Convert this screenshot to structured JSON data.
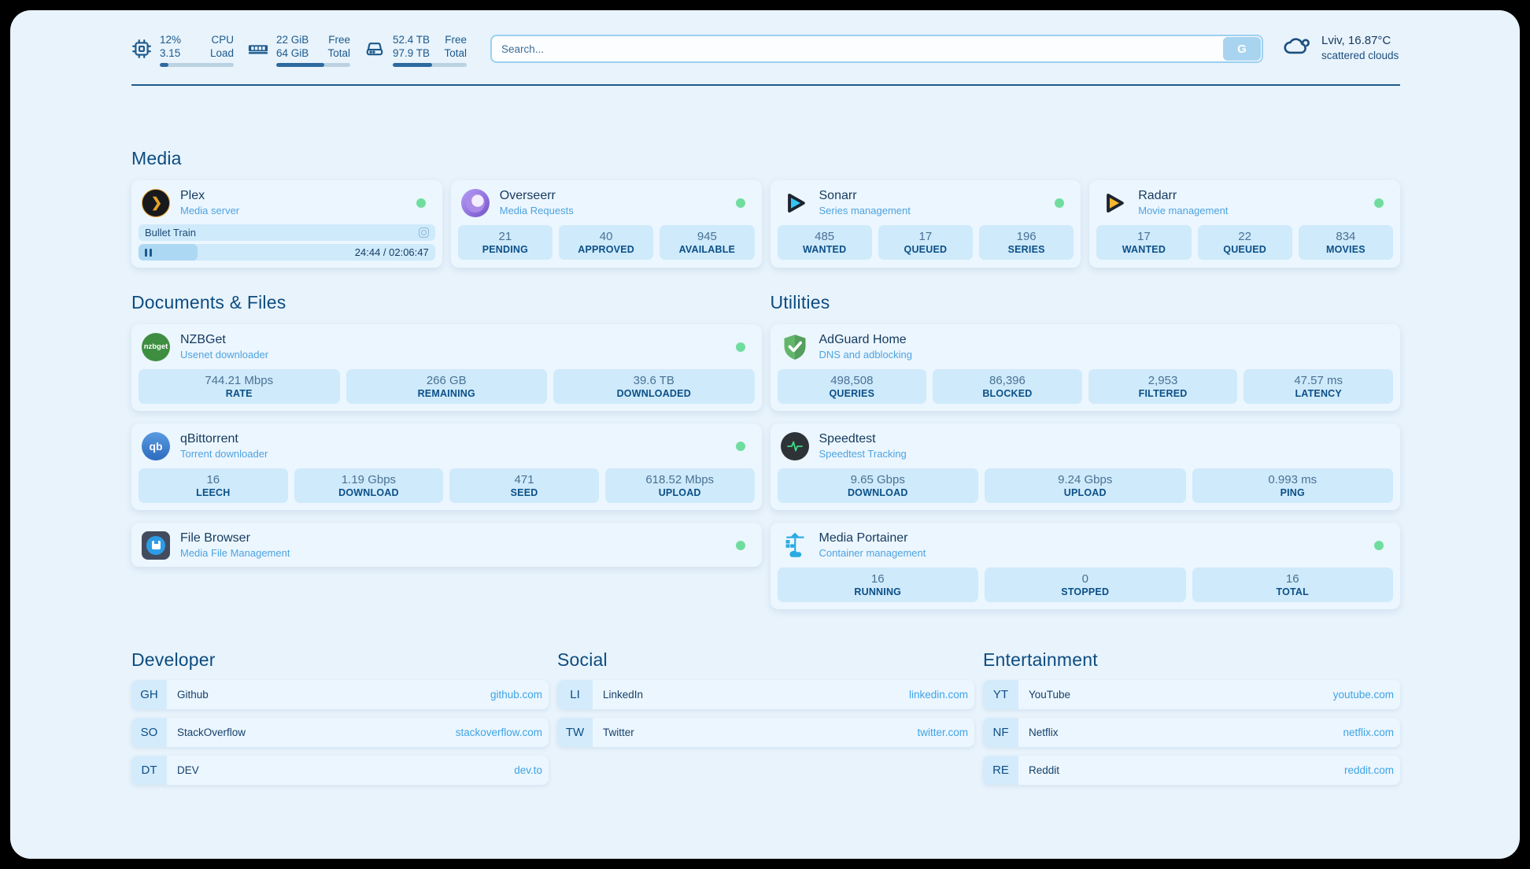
{
  "colors": {
    "panel_bg": "#e8f3fc",
    "accent_dark": "#0d4c80",
    "text_navy": "#153a5f",
    "subtitle_blue": "#4da3e0",
    "stat_box_bg": "#cfeafb",
    "status_online": "#70dd9f",
    "link_url_blue": "#3ea3e5",
    "progress_fill": "#2c6a9e"
  },
  "header": {
    "metrics": [
      {
        "icon": "cpu-icon",
        "values": [
          "12%",
          "3.15"
        ],
        "labels": [
          "CPU",
          "Load"
        ],
        "percent": 12
      },
      {
        "icon": "ram-icon",
        "values": [
          "22 GiB",
          "64 GiB"
        ],
        "labels": [
          "Free",
          "Total"
        ],
        "percent": 65
      },
      {
        "icon": "disk-icon",
        "values": [
          "52.4 TB",
          "97.9 TB"
        ],
        "labels": [
          "Free",
          "Total"
        ],
        "percent": 53
      }
    ],
    "search": {
      "placeholder": "Search...",
      "button_label": "G"
    },
    "weather": {
      "location": "Lviv, 16.87°C",
      "condition": "scattered clouds"
    }
  },
  "sections": {
    "media": "Media",
    "documents": "Documents & Files",
    "utilities": "Utilities",
    "developer": "Developer",
    "social": "Social",
    "entertainment": "Entertainment"
  },
  "apps": {
    "plex": {
      "name": "Plex",
      "desc": "Media server",
      "now_playing": "Bullet Train",
      "time": "24:44 / 02:06:47"
    },
    "overseerr": {
      "name": "Overseerr",
      "desc": "Media Requests",
      "stats": [
        {
          "value": "21",
          "label": "PENDING"
        },
        {
          "value": "40",
          "label": "APPROVED"
        },
        {
          "value": "945",
          "label": "AVAILABLE"
        }
      ]
    },
    "sonarr": {
      "name": "Sonarr",
      "desc": "Series management",
      "stats": [
        {
          "value": "485",
          "label": "WANTED"
        },
        {
          "value": "17",
          "label": "QUEUED"
        },
        {
          "value": "196",
          "label": "SERIES"
        }
      ]
    },
    "radarr": {
      "name": "Radarr",
      "desc": "Movie management",
      "stats": [
        {
          "value": "17",
          "label": "WANTED"
        },
        {
          "value": "22",
          "label": "QUEUED"
        },
        {
          "value": "834",
          "label": "MOVIES"
        }
      ]
    },
    "nzbget": {
      "name": "NZBGet",
      "desc": "Usenet downloader",
      "icon_label": "nzbget",
      "stats": [
        {
          "value": "744.21 Mbps",
          "label": "RATE"
        },
        {
          "value": "266 GB",
          "label": "REMAINING"
        },
        {
          "value": "39.6 TB",
          "label": "DOWNLOADED"
        }
      ]
    },
    "qbittorrent": {
      "name": "qBittorrent",
      "desc": "Torrent downloader",
      "icon_label": "qb",
      "stats": [
        {
          "value": "16",
          "label": "LEECH"
        },
        {
          "value": "1.19 Gbps",
          "label": "DOWNLOAD"
        },
        {
          "value": "471",
          "label": "SEED"
        },
        {
          "value": "618.52 Mbps",
          "label": "UPLOAD"
        }
      ]
    },
    "filebrowser": {
      "name": "File Browser",
      "desc": "Media File Management"
    },
    "adguard": {
      "name": "AdGuard Home",
      "desc": "DNS and adblocking",
      "stats": [
        {
          "value": "498,508",
          "label": "QUERIES"
        },
        {
          "value": "86,396",
          "label": "BLOCKED"
        },
        {
          "value": "2,953",
          "label": "FILTERED"
        },
        {
          "value": "47.57 ms",
          "label": "LATENCY"
        }
      ]
    },
    "speedtest": {
      "name": "Speedtest",
      "desc": "Speedtest Tracking",
      "stats": [
        {
          "value": "9.65 Gbps",
          "label": "DOWNLOAD"
        },
        {
          "value": "9.24 Gbps",
          "label": "UPLOAD"
        },
        {
          "value": "0.993 ms",
          "label": "PING"
        }
      ]
    },
    "portainer": {
      "name": "Media Portainer",
      "desc": "Container management",
      "stats": [
        {
          "value": "16",
          "label": "RUNNING"
        },
        {
          "value": "0",
          "label": "STOPPED"
        },
        {
          "value": "16",
          "label": "TOTAL"
        }
      ]
    }
  },
  "links": {
    "developer": [
      {
        "abbr": "GH",
        "name": "Github",
        "url": "github.com"
      },
      {
        "abbr": "SO",
        "name": "StackOverflow",
        "url": "stackoverflow.com"
      },
      {
        "abbr": "DT",
        "name": "DEV",
        "url": "dev.to"
      }
    ],
    "social": [
      {
        "abbr": "LI",
        "name": "LinkedIn",
        "url": "linkedin.com"
      },
      {
        "abbr": "TW",
        "name": "Twitter",
        "url": "twitter.com"
      }
    ],
    "entertainment": [
      {
        "abbr": "YT",
        "name": "YouTube",
        "url": "youtube.com"
      },
      {
        "abbr": "NF",
        "name": "Netflix",
        "url": "netflix.com"
      },
      {
        "abbr": "RE",
        "name": "Reddit",
        "url": "reddit.com"
      }
    ]
  }
}
